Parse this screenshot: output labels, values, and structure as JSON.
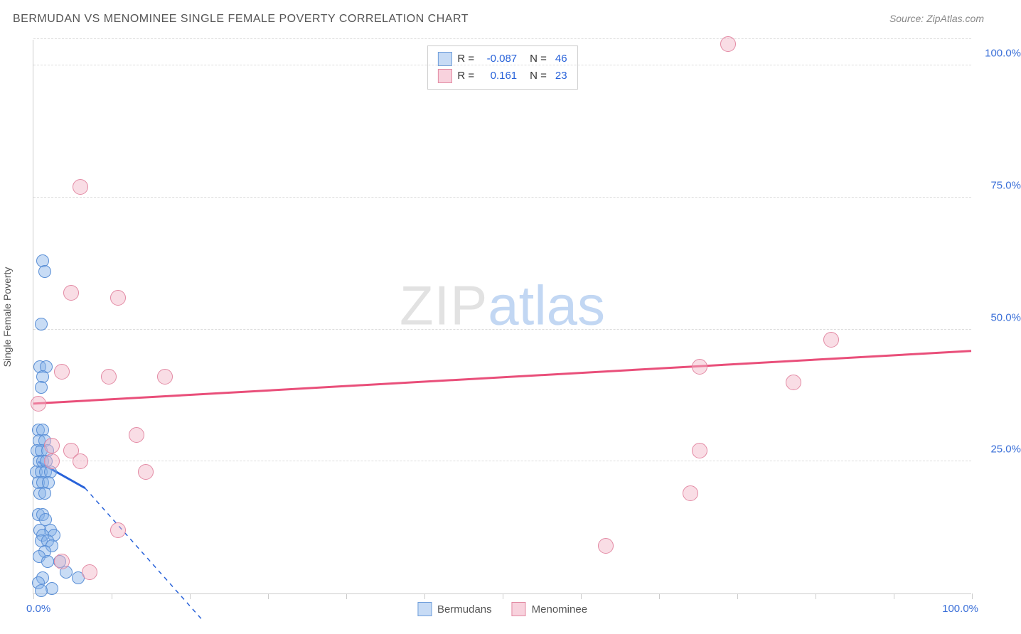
{
  "title": "BERMUDAN VS MENOMINEE SINGLE FEMALE POVERTY CORRELATION CHART",
  "source": "Source: ZipAtlas.com",
  "watermark": {
    "left": "ZIP",
    "right": "atlas"
  },
  "chart": {
    "type": "scatter",
    "y_label": "Single Female Poverty",
    "background_color": "#ffffff",
    "grid_color": "#dddddd",
    "axis_color": "#cccccc",
    "tick_color": "#3a6fd8",
    "xlim": [
      0,
      100
    ],
    "ylim": [
      0,
      105
    ],
    "x_ticks_percent": [
      0,
      8.3,
      16.7,
      25,
      33.3,
      41.7,
      50,
      58.3,
      66.7,
      75,
      83.3,
      91.7,
      100
    ],
    "y_gridlines": [
      25,
      50,
      75,
      100,
      105
    ],
    "y_tick_labels": [
      {
        "value": 25,
        "label": "25.0%"
      },
      {
        "value": 50,
        "label": "50.0%"
      },
      {
        "value": 75,
        "label": "75.0%"
      },
      {
        "value": 100,
        "label": "100.0%"
      }
    ],
    "x_tick_labels": {
      "left": "0.0%",
      "right": "100.0%"
    },
    "stats_legend": [
      {
        "swatch_fill": "#c7dbf5",
        "swatch_border": "#6f9edb",
        "r": "-0.087",
        "n": "46"
      },
      {
        "swatch_fill": "#f8d2dd",
        "swatch_border": "#e28aa3",
        "r": "0.161",
        "n": "23"
      }
    ],
    "bottom_legend": [
      {
        "swatch_fill": "#c7dbf5",
        "swatch_border": "#6f9edb",
        "label": "Bermudans"
      },
      {
        "swatch_fill": "#f8d2dd",
        "swatch_border": "#e28aa3",
        "label": "Menominee"
      }
    ],
    "series": [
      {
        "name": "Bermudans",
        "marker_fill": "rgba(133,177,232,0.45)",
        "marker_stroke": "#5a8fd6",
        "marker_radius": 9,
        "trend_color": "#2862d9",
        "trend_solid": {
          "x1": 0.5,
          "y1": 25,
          "x2": 5.5,
          "y2": 20
        },
        "trend_dashed": {
          "x1": 5.5,
          "y1": 20,
          "x2": 18,
          "y2": -5
        },
        "points": [
          {
            "x": 1.0,
            "y": 63
          },
          {
            "x": 1.2,
            "y": 61
          },
          {
            "x": 0.8,
            "y": 51
          },
          {
            "x": 0.7,
            "y": 43
          },
          {
            "x": 1.4,
            "y": 43
          },
          {
            "x": 1.0,
            "y": 41
          },
          {
            "x": 0.8,
            "y": 39
          },
          {
            "x": 0.5,
            "y": 31
          },
          {
            "x": 1.0,
            "y": 31
          },
          {
            "x": 0.6,
            "y": 29
          },
          {
            "x": 1.2,
            "y": 29
          },
          {
            "x": 0.4,
            "y": 27
          },
          {
            "x": 0.8,
            "y": 27
          },
          {
            "x": 1.5,
            "y": 27
          },
          {
            "x": 0.6,
            "y": 25
          },
          {
            "x": 1.0,
            "y": 25
          },
          {
            "x": 1.4,
            "y": 25
          },
          {
            "x": 0.3,
            "y": 23
          },
          {
            "x": 0.8,
            "y": 23
          },
          {
            "x": 1.3,
            "y": 23
          },
          {
            "x": 1.8,
            "y": 23
          },
          {
            "x": 0.5,
            "y": 21
          },
          {
            "x": 1.0,
            "y": 21
          },
          {
            "x": 1.6,
            "y": 21
          },
          {
            "x": 0.7,
            "y": 19
          },
          {
            "x": 1.2,
            "y": 19
          },
          {
            "x": 0.5,
            "y": 15
          },
          {
            "x": 1.0,
            "y": 15
          },
          {
            "x": 1.3,
            "y": 14
          },
          {
            "x": 1.8,
            "y": 12
          },
          {
            "x": 0.7,
            "y": 12
          },
          {
            "x": 1.0,
            "y": 11
          },
          {
            "x": 2.2,
            "y": 11
          },
          {
            "x": 0.8,
            "y": 10
          },
          {
            "x": 1.5,
            "y": 10
          },
          {
            "x": 2.0,
            "y": 9
          },
          {
            "x": 1.2,
            "y": 8
          },
          {
            "x": 0.6,
            "y": 7
          },
          {
            "x": 1.5,
            "y": 6
          },
          {
            "x": 2.8,
            "y": 6
          },
          {
            "x": 3.5,
            "y": 4
          },
          {
            "x": 1.0,
            "y": 3
          },
          {
            "x": 4.8,
            "y": 3
          },
          {
            "x": 0.5,
            "y": 2
          },
          {
            "x": 2.0,
            "y": 1
          },
          {
            "x": 0.8,
            "y": 0.5
          }
        ]
      },
      {
        "name": "Menominee",
        "marker_fill": "rgba(242,179,197,0.45)",
        "marker_stroke": "#e38aa4",
        "marker_radius": 11,
        "trend_color": "#e94f7a",
        "trend_solid": {
          "x1": 0,
          "y1": 36,
          "x2": 100,
          "y2": 46
        },
        "points": [
          {
            "x": 74,
            "y": 104
          },
          {
            "x": 5,
            "y": 77
          },
          {
            "x": 4,
            "y": 57
          },
          {
            "x": 9,
            "y": 56
          },
          {
            "x": 85,
            "y": 48
          },
          {
            "x": 71,
            "y": 43
          },
          {
            "x": 3,
            "y": 42
          },
          {
            "x": 8,
            "y": 41
          },
          {
            "x": 14,
            "y": 41
          },
          {
            "x": 81,
            "y": 40
          },
          {
            "x": 0.5,
            "y": 36
          },
          {
            "x": 11,
            "y": 30
          },
          {
            "x": 2,
            "y": 28
          },
          {
            "x": 4,
            "y": 27
          },
          {
            "x": 71,
            "y": 27
          },
          {
            "x": 2,
            "y": 25
          },
          {
            "x": 5,
            "y": 25
          },
          {
            "x": 12,
            "y": 23
          },
          {
            "x": 70,
            "y": 19
          },
          {
            "x": 9,
            "y": 12
          },
          {
            "x": 61,
            "y": 9
          },
          {
            "x": 3,
            "y": 6
          },
          {
            "x": 6,
            "y": 4
          }
        ]
      }
    ]
  }
}
